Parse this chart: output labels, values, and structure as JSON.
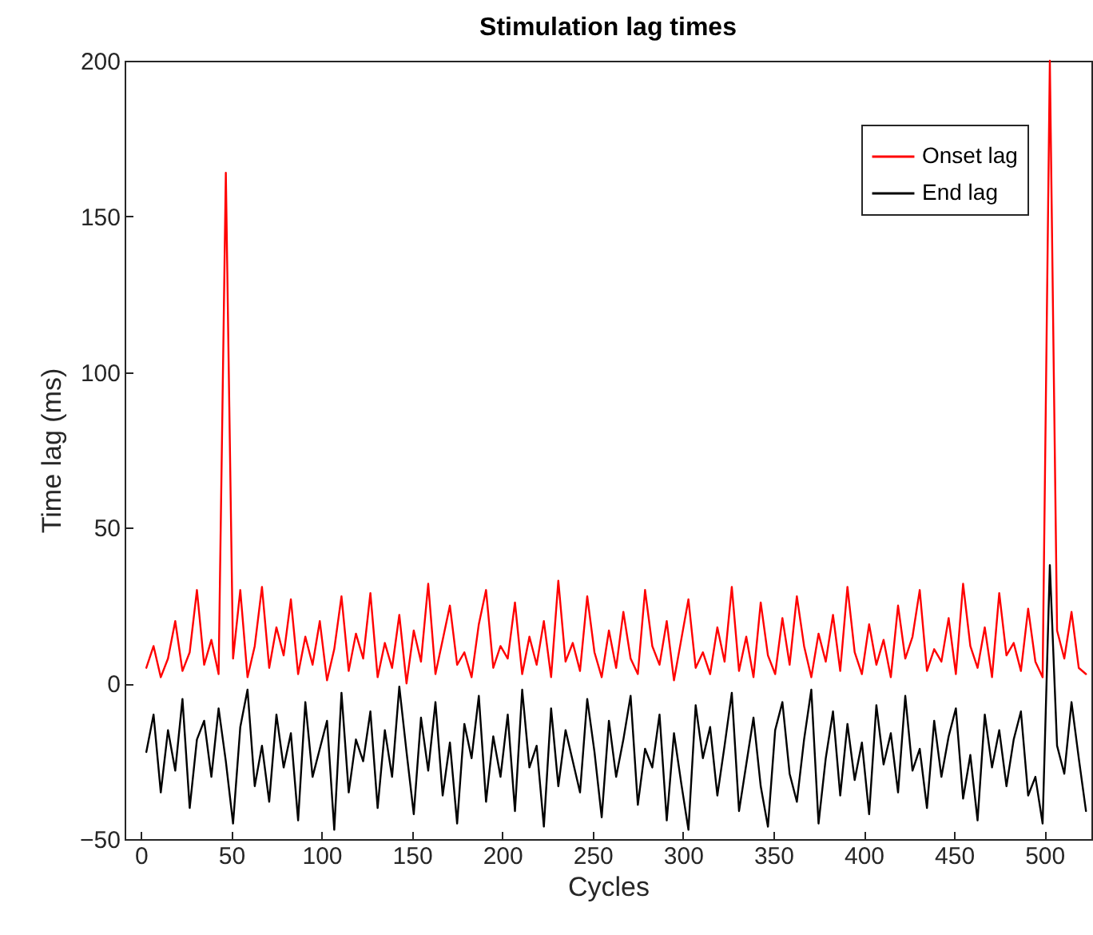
{
  "chart_data": {
    "type": "line",
    "title": "Stimulation lag times",
    "xlabel": "Cycles",
    "ylabel": "Time lag (ms)",
    "x": [
      3,
      7,
      11,
      15,
      19,
      23,
      27,
      31,
      35,
      39,
      43,
      47,
      51,
      55,
      59,
      63,
      67,
      71,
      75,
      79,
      83,
      87,
      91,
      95,
      99,
      103,
      107,
      111,
      115,
      119,
      123,
      127,
      131,
      135,
      139,
      143,
      147,
      151,
      155,
      159,
      163,
      167,
      171,
      175,
      179,
      183,
      187,
      191,
      195,
      199,
      203,
      207,
      211,
      215,
      219,
      223,
      227,
      231,
      235,
      239,
      243,
      247,
      251,
      255,
      259,
      263,
      267,
      271,
      275,
      279,
      283,
      287,
      291,
      295,
      299,
      303,
      307,
      311,
      315,
      319,
      323,
      327,
      331,
      335,
      339,
      343,
      347,
      351,
      355,
      359,
      363,
      367,
      371,
      375,
      379,
      383,
      387,
      391,
      395,
      399,
      403,
      407,
      411,
      415,
      419,
      423,
      427,
      431,
      435,
      439,
      443,
      447,
      451,
      455,
      459,
      463,
      467,
      471,
      475,
      479,
      483,
      487,
      491,
      495,
      499,
      503,
      507,
      511,
      515,
      519,
      523
    ],
    "series": [
      {
        "name": "Onset lag",
        "color": "#ff0000",
        "values": [
          5,
          12,
          2,
          8,
          20,
          4,
          10,
          30,
          6,
          14,
          3,
          164,
          8,
          30,
          2,
          12,
          31,
          5,
          18,
          9,
          27,
          3,
          15,
          6,
          20,
          1,
          11,
          28,
          4,
          16,
          8,
          29,
          2,
          13,
          5,
          22,
          0,
          17,
          7,
          32,
          3,
          14,
          25,
          6,
          10,
          2,
          19,
          30,
          5,
          12,
          8,
          26,
          3,
          15,
          6,
          20,
          2,
          33,
          7,
          13,
          4,
          28,
          10,
          2,
          17,
          5,
          23,
          8,
          3,
          30,
          12,
          6,
          20,
          1,
          14,
          27,
          5,
          10,
          3,
          18,
          7,
          31,
          4,
          15,
          2,
          26,
          9,
          3,
          21,
          6,
          28,
          12,
          2,
          16,
          7,
          22,
          4,
          31,
          10,
          3,
          19,
          6,
          14,
          2,
          25,
          8,
          15,
          30,
          4,
          11,
          7,
          21,
          3,
          32,
          12,
          5,
          18,
          2,
          29,
          9,
          13,
          4,
          24,
          7,
          2,
          200,
          17,
          8,
          23,
          5,
          3
        ]
      },
      {
        "name": "End lag",
        "color": "#000000",
        "values": [
          -22,
          -10,
          -35,
          -15,
          -28,
          -5,
          -40,
          -18,
          -12,
          -30,
          -8,
          -25,
          -45,
          -14,
          -2,
          -33,
          -20,
          -38,
          -10,
          -27,
          -16,
          -44,
          -6,
          -30,
          -21,
          -12,
          -47,
          -3,
          -35,
          -18,
          -25,
          -9,
          -40,
          -15,
          -30,
          -1,
          -22,
          -42,
          -11,
          -28,
          -6,
          -36,
          -19,
          -45,
          -13,
          -24,
          -4,
          -38,
          -17,
          -30,
          -10,
          -41,
          -2,
          -27,
          -20,
          -46,
          -8,
          -33,
          -15,
          -25,
          -35,
          -5,
          -22,
          -43,
          -12,
          -30,
          -18,
          -4,
          -39,
          -21,
          -27,
          -10,
          -44,
          -16,
          -32,
          -47,
          -7,
          -24,
          -14,
          -36,
          -20,
          -3,
          -41,
          -26,
          -11,
          -33,
          -46,
          -15,
          -6,
          -29,
          -38,
          -18,
          -2,
          -45,
          -24,
          -9,
          -36,
          -13,
          -31,
          -19,
          -42,
          -7,
          -26,
          -16,
          -35,
          -4,
          -28,
          -21,
          -40,
          -12,
          -30,
          -17,
          -8,
          -37,
          -23,
          -44,
          -10,
          -27,
          -15,
          -33,
          -18,
          -9,
          -36,
          -30,
          -45,
          38,
          -20,
          -29,
          -6,
          -24,
          -41
        ]
      }
    ],
    "xlim": [
      -9,
      526
    ],
    "xticks": [
      0,
      50,
      100,
      150,
      200,
      250,
      300,
      350,
      400,
      450,
      500
    ],
    "ylim": [
      -50,
      200
    ],
    "yticks": [
      -50,
      0,
      50,
      100,
      150,
      200
    ],
    "legend": "top right",
    "grid": false,
    "marker": "none",
    "line_style": "solid"
  }
}
